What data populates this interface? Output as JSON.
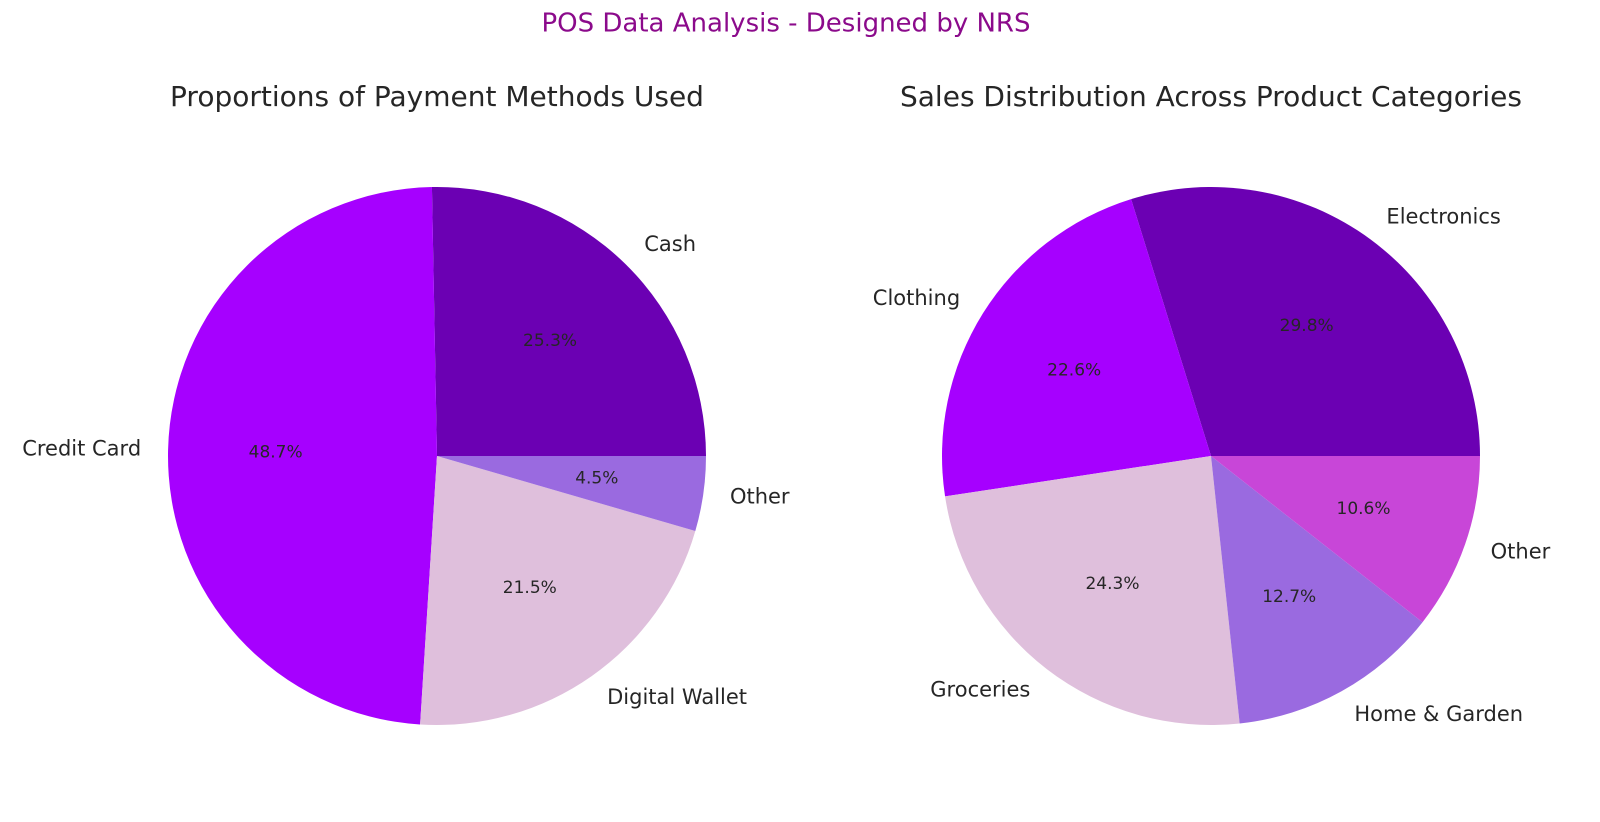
{
  "suptitle": "POS Data Analysis - Designed by NRS",
  "chart_data": [
    {
      "type": "pie",
      "title": "Proportions of Payment Methods Used",
      "labels": [
        "Cash",
        "Credit Card",
        "Digital Wallet",
        "Other"
      ],
      "values": [
        25.3,
        48.7,
        21.5,
        4.5
      ],
      "value_labels": [
        "25.3%",
        "48.7%",
        "21.5%",
        "4.5%"
      ],
      "colors": [
        "#6b00b3",
        "#a600ff",
        "#dfbfdc",
        "#9a6ae0"
      ]
    },
    {
      "type": "pie",
      "title": "Sales Distribution Across Product Categories",
      "labels": [
        "Electronics",
        "Clothing",
        "Groceries",
        "Home & Garden",
        "Other"
      ],
      "values": [
        29.8,
        22.6,
        24.3,
        12.7,
        10.6
      ],
      "value_labels": [
        "29.8%",
        "22.6%",
        "24.3%",
        "12.7%",
        "10.6%"
      ],
      "colors": [
        "#6b00b3",
        "#a600ff",
        "#dfbfdc",
        "#9a6ae0",
        "#c846d8"
      ]
    }
  ]
}
